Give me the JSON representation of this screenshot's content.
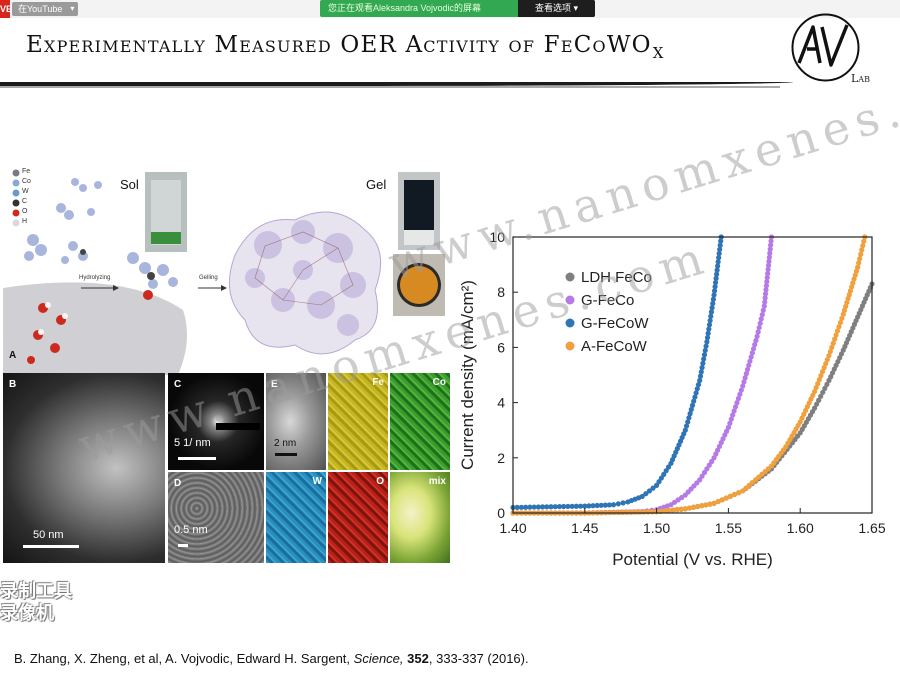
{
  "share_bar": {
    "live_badge": "VE",
    "youtube_chip": "在YouTube",
    "viewing_notice": "您正在观看Aleksandra  Vojvodic的屏幕",
    "view_options": "查看选项"
  },
  "slide": {
    "title_main": "Experimentally Measured OER Activity of FeCoWO",
    "title_sub": "X",
    "logo_letters": "AV",
    "logo_label": "Lab"
  },
  "figure_left": {
    "legend_elements": [
      "Fe",
      "Co",
      "W",
      "C",
      "O",
      "H"
    ],
    "legend_colors": [
      "#7a7a86",
      "#8aa6d6",
      "#6c9ac9",
      "#333333",
      "#cc2a1e",
      "#d8d8e4"
    ],
    "sol_label": "Sol",
    "gel_label": "Gel",
    "hydrolyzing_label": "Hydrolyzing",
    "gelling_label": "Gelling",
    "panels": {
      "A": "A",
      "B": "B",
      "C": "C",
      "D": "D",
      "E": "E",
      "Fe": "Fe",
      "Co": "Co",
      "W": "W",
      "O": "O",
      "mix": "mix"
    },
    "scale_bars": {
      "B": "50 nm",
      "C": "5 1/ nm",
      "D": "0.5 nm",
      "E": "2 nm"
    }
  },
  "chart_data": {
    "type": "scatter",
    "xlabel": "Potential (V vs. RHE)",
    "ylabel": "Current density (mA/cm²)",
    "xlim": [
      1.4,
      1.65
    ],
    "ylim": [
      0,
      10
    ],
    "xticks": [
      "1.40",
      "1.45",
      "1.50",
      "1.55",
      "1.60",
      "1.65"
    ],
    "yticks": [
      "0",
      "2",
      "4",
      "6",
      "8",
      "10"
    ],
    "legend_position": "top-left",
    "series": [
      {
        "name": "LDH FeCo",
        "color": "#7f7f7f",
        "x": [
          1.4,
          1.45,
          1.5,
          1.52,
          1.54,
          1.56,
          1.58,
          1.6,
          1.61,
          1.62,
          1.63,
          1.64,
          1.65
        ],
        "y": [
          0.0,
          0.0,
          0.05,
          0.15,
          0.35,
          0.8,
          1.6,
          2.9,
          3.8,
          4.8,
          5.9,
          7.1,
          8.3
        ]
      },
      {
        "name": "G-FeCo",
        "color": "#b57ae6",
        "x": [
          1.4,
          1.45,
          1.49,
          1.5,
          1.51,
          1.52,
          1.53,
          1.54,
          1.55,
          1.56,
          1.57,
          1.575,
          1.58
        ],
        "y": [
          0.0,
          0.0,
          0.05,
          0.12,
          0.3,
          0.65,
          1.2,
          2.0,
          3.1,
          4.6,
          6.4,
          7.5,
          10.0
        ]
      },
      {
        "name": "G-FeCoW",
        "color": "#2f75b5",
        "x": [
          1.4,
          1.45,
          1.47,
          1.48,
          1.49,
          1.5,
          1.51,
          1.52,
          1.53,
          1.535,
          1.54,
          1.545
        ],
        "y": [
          0.2,
          0.25,
          0.3,
          0.4,
          0.6,
          1.0,
          1.8,
          3.0,
          4.8,
          6.2,
          7.9,
          10.0
        ]
      },
      {
        "name": "A-FeCoW",
        "color": "#f0a03c",
        "x": [
          1.4,
          1.45,
          1.5,
          1.52,
          1.54,
          1.56,
          1.58,
          1.59,
          1.6,
          1.61,
          1.62,
          1.63,
          1.64,
          1.645
        ],
        "y": [
          0.0,
          0.0,
          0.05,
          0.15,
          0.35,
          0.8,
          1.7,
          2.4,
          3.3,
          4.4,
          5.7,
          7.2,
          8.9,
          10.0
        ]
      }
    ]
  },
  "watermark_text": "www.nanomxenes.com",
  "recorder_text_line1": "录制工具",
  "recorder_text_line2": "录像机",
  "citation": {
    "authors": "B. Zhang, X. Zheng, et al, A. Vojvodic, Edward H. Sargent,",
    "journal": "Science,",
    "volume": "352",
    "pages": ", 333-337 (2016)."
  }
}
